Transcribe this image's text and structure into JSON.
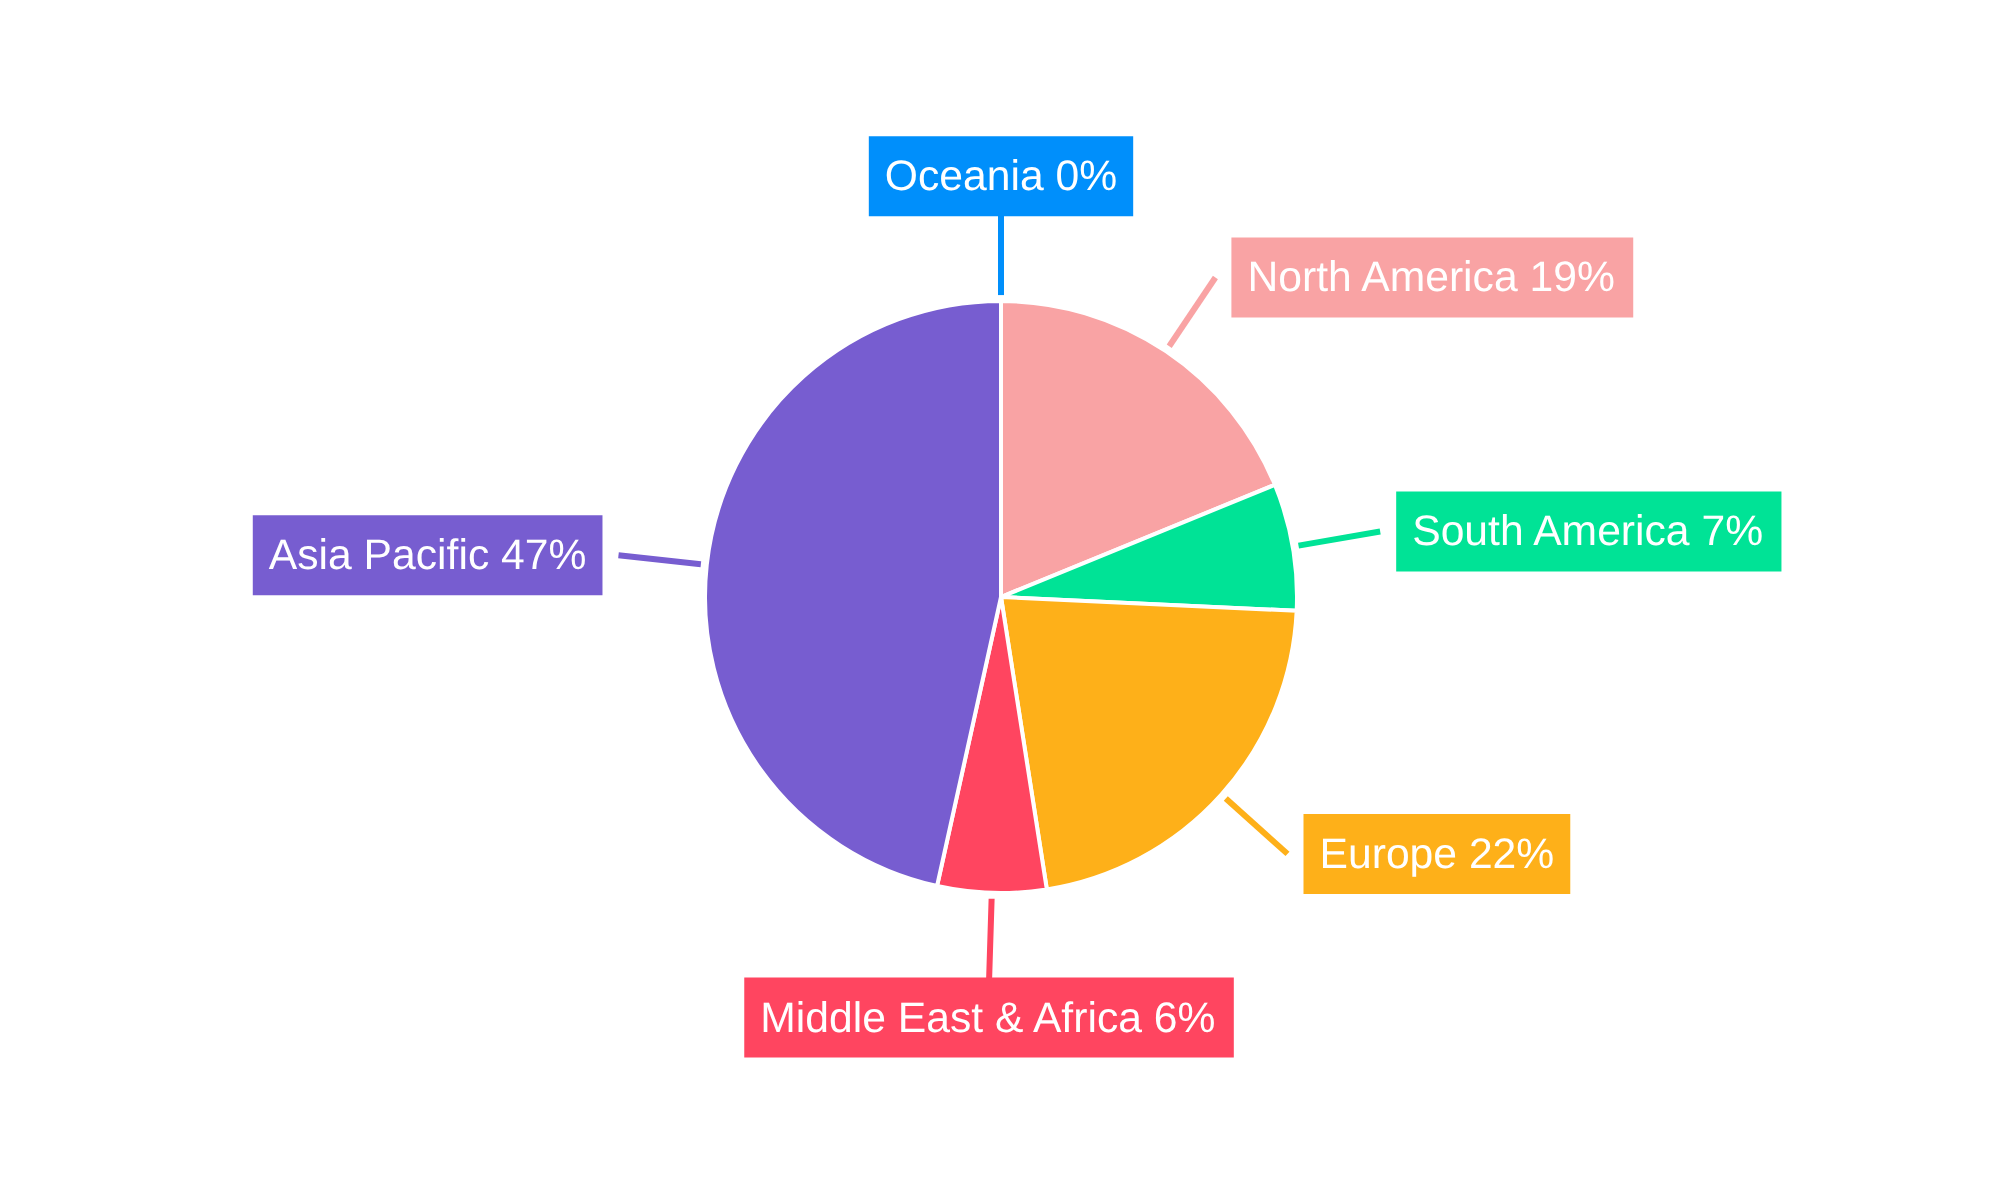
{
  "chart_data": {
    "type": "pie",
    "categories": [
      "North America",
      "South America",
      "Europe",
      "Middle East & Africa",
      "Asia Pacific",
      "Oceania"
    ],
    "values": [
      19,
      7,
      22,
      6,
      47,
      0
    ],
    "value_labels": [
      "19%",
      "7%",
      "22%",
      "6%",
      "47%",
      "0%"
    ],
    "colors": [
      "#f9a3a4",
      "#00e396",
      "#feb019",
      "#ff4560",
      "#775dd0",
      "#008ffb"
    ]
  }
}
